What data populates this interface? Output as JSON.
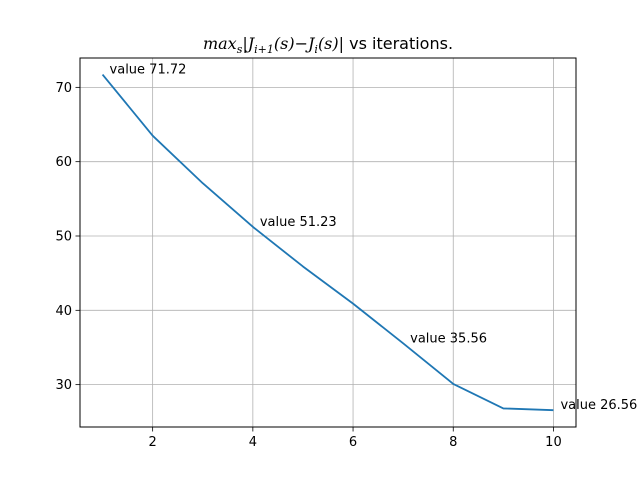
{
  "chart_data": {
    "type": "line",
    "title": {
      "prefix": "max",
      "prefix_sub": "s",
      "middle_a": "|J",
      "sub_a": "i+1",
      "middle_b": "(s)−J",
      "sub_b": "i",
      "middle_c": "(s)|",
      "suffix": " vs iterations."
    },
    "xlabel": "",
    "ylabel": "",
    "xlim": [
      0.55,
      10.45
    ],
    "ylim": [
      24.3,
      73.95
    ],
    "xticks": [
      2,
      4,
      6,
      8,
      10
    ],
    "yticks": [
      30,
      40,
      50,
      60,
      70
    ],
    "grid": true,
    "series": [
      {
        "color": "#1f77b4",
        "x": [
          1,
          2,
          3,
          4,
          5,
          6,
          7,
          8,
          9,
          10
        ],
        "y": [
          71.72,
          63.5,
          57.1,
          51.23,
          45.9,
          40.9,
          35.56,
          30.1,
          26.8,
          26.56
        ]
      }
    ],
    "annotations": [
      {
        "x": 1,
        "y": 71.72,
        "text": "value 71.72"
      },
      {
        "x": 4,
        "y": 51.23,
        "text": "value 51.23"
      },
      {
        "x": 7,
        "y": 35.56,
        "text": "value 35.56"
      },
      {
        "x": 10,
        "y": 26.56,
        "text": "value 26.56"
      }
    ]
  }
}
